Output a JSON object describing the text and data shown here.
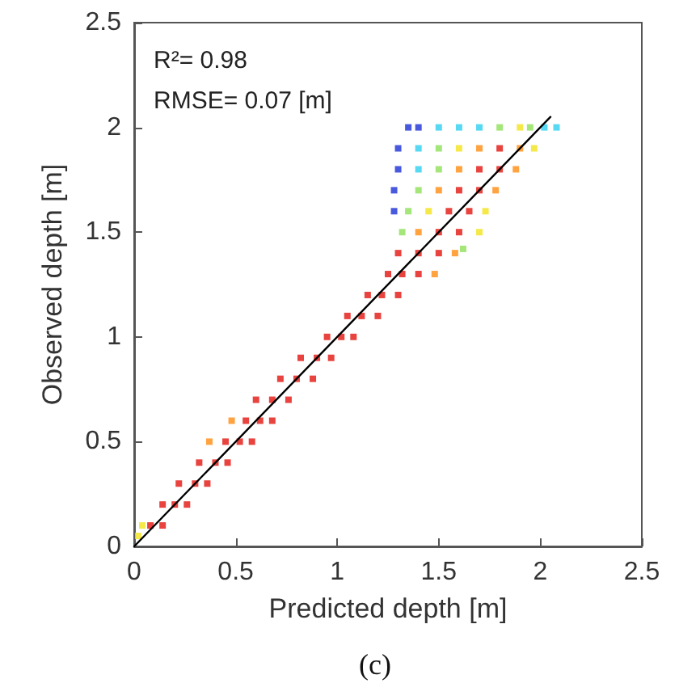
{
  "chart_data": {
    "type": "scatter",
    "xlabel": "Predicted depth [m]",
    "ylabel": "Observed depth [m]",
    "xlim": [
      0,
      2.5
    ],
    "ylim": [
      0,
      2.5
    ],
    "xticks": [
      0,
      0.5,
      1,
      1.5,
      2,
      2.5
    ],
    "yticks": [
      0,
      0.5,
      1,
      1.5,
      2,
      2.5
    ],
    "annotations": [
      "R²= 0.98",
      "RMSE= 0.07 [m]",
      "(c)"
    ],
    "series": [
      {
        "marker": "square",
        "x": [
          1.35,
          1.4,
          1.5,
          1.6,
          1.7,
          1.8,
          1.9,
          1.95,
          2.02,
          2.08,
          1.3,
          1.4,
          1.5,
          1.6,
          1.7,
          1.8,
          1.9,
          1.97,
          1.3,
          1.4,
          1.5,
          1.6,
          1.7,
          1.8,
          1.88,
          1.28,
          1.4,
          1.5,
          1.6,
          1.7,
          1.78,
          1.28,
          1.35,
          1.45,
          1.55,
          1.65,
          1.73,
          1.32,
          1.4,
          1.5,
          1.6,
          1.7,
          1.62,
          1.3,
          1.4,
          1.5,
          1.58,
          1.25,
          1.32,
          1.4,
          1.48,
          1.15,
          1.22,
          1.3,
          1.05,
          1.12,
          1.2,
          0.95,
          1.02,
          1.08,
          0.82,
          0.9,
          0.97,
          0.72,
          0.8,
          0.88,
          0.6,
          0.68,
          0.76,
          0.48,
          0.55,
          0.62,
          0.68,
          0.37,
          0.45,
          0.52,
          0.58,
          0.32,
          0.4,
          0.46,
          0.22,
          0.3,
          0.36,
          0.14,
          0.2,
          0.26,
          0.04,
          0.08,
          0.14,
          0.02
        ],
        "values": [
          2,
          2,
          2,
          2,
          2,
          2,
          2,
          2,
          2,
          2,
          1.9,
          1.9,
          1.9,
          1.9,
          1.9,
          1.9,
          1.9,
          1.9,
          1.8,
          1.8,
          1.8,
          1.8,
          1.8,
          1.8,
          1.8,
          1.7,
          1.7,
          1.7,
          1.7,
          1.7,
          1.7,
          1.6,
          1.6,
          1.6,
          1.6,
          1.6,
          1.6,
          1.5,
          1.5,
          1.5,
          1.5,
          1.5,
          1.42,
          1.4,
          1.4,
          1.4,
          1.4,
          1.3,
          1.3,
          1.3,
          1.3,
          1.2,
          1.2,
          1.2,
          1.1,
          1.1,
          1.1,
          1,
          1,
          1,
          0.9,
          0.9,
          0.9,
          0.8,
          0.8,
          0.8,
          0.7,
          0.7,
          0.7,
          0.6,
          0.6,
          0.6,
          0.6,
          0.5,
          0.5,
          0.5,
          0.5,
          0.4,
          0.4,
          0.4,
          0.3,
          0.3,
          0.3,
          0.2,
          0.2,
          0.2,
          0.1,
          0.1,
          0.1,
          0.05
        ],
        "colors": [
          "#1c2fd6",
          "#1c2fd6",
          "#2ed0f0",
          "#2ed0f0",
          "#2ed0f0",
          "#8ee05a",
          "#f2e41c",
          "#8ee05a",
          "#2ed0f0",
          "#2ed0f0",
          "#1c2fd6",
          "#2ed0f0",
          "#8ee05a",
          "#f2e41c",
          "#ff8c10",
          "#e2140e",
          "#ff8c10",
          "#f2e41c",
          "#1c2fd6",
          "#2ed0f0",
          "#8ee05a",
          "#ff8c10",
          "#e2140e",
          "#e2140e",
          "#ff8c10",
          "#1c2fd6",
          "#8ee05a",
          "#ff8c10",
          "#e2140e",
          "#e2140e",
          "#ff8c10",
          "#1c2fd6",
          "#8ee05a",
          "#f2e41c",
          "#e2140e",
          "#e2140e",
          "#f2e41c",
          "#8ee05a",
          "#ff8c10",
          "#e2140e",
          "#e2140e",
          "#f2e41c",
          "#8ee05a",
          "#e2140e",
          "#e2140e",
          "#e2140e",
          "#ff8c10",
          "#e2140e",
          "#e2140e",
          "#e2140e",
          "#ff8c10",
          "#e2140e",
          "#e2140e",
          "#e2140e",
          "#e2140e",
          "#e2140e",
          "#e2140e",
          "#e2140e",
          "#e2140e",
          "#e2140e",
          "#e2140e",
          "#e2140e",
          "#e2140e",
          "#e2140e",
          "#e2140e",
          "#e2140e",
          "#e2140e",
          "#e2140e",
          "#e2140e",
          "#ff8c10",
          "#e2140e",
          "#e2140e",
          "#e2140e",
          "#ff8c10",
          "#e2140e",
          "#e2140e",
          "#e2140e",
          "#e2140e",
          "#e2140e",
          "#e2140e",
          "#e2140e",
          "#e2140e",
          "#e2140e",
          "#e2140e",
          "#e2140e",
          "#e2140e",
          "#f2e41c",
          "#e2140e",
          "#e2140e",
          "#f2e41c"
        ]
      },
      {
        "type": "line",
        "color": "#000000",
        "line_style": "solid",
        "marker": "none",
        "x": [
          0,
          2.05
        ],
        "values": [
          0,
          2.05
        ]
      }
    ]
  }
}
